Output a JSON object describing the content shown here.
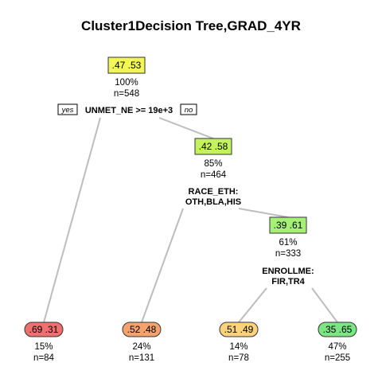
{
  "title": "Cluster1Decision Tree,GRAD_4YR",
  "colors": {
    "edge": "#bdbdbd",
    "box_border": "#333333",
    "yellow_bright": "#f2f757",
    "yellow_green": "#c4f25e",
    "green_light": "#a6f078",
    "red": "#f07070",
    "orange": "#f5a36e",
    "orange_light": "#fcd27c",
    "green": "#7de684"
  },
  "nodes": [
    {
      "id": "root",
      "probs": ".47  .53",
      "pct": "100%",
      "n": "n=548",
      "fill": "#f2f757",
      "leaf": false
    },
    {
      "id": "n2",
      "probs": ".42  .58",
      "pct": "85%",
      "n": "n=464",
      "fill": "#c4f25e",
      "leaf": false
    },
    {
      "id": "n3",
      "probs": ".39  .61",
      "pct": "61%",
      "n": "n=333",
      "fill": "#a6f078",
      "leaf": false
    },
    {
      "id": "leaf1",
      "probs": ".69  .31",
      "pct": "15%",
      "n": "n=84",
      "fill": "#f07070",
      "leaf": true
    },
    {
      "id": "leaf2",
      "probs": ".52  .48",
      "pct": "24%",
      "n": "n=131",
      "fill": "#f5a36e",
      "leaf": true
    },
    {
      "id": "leaf3",
      "probs": ".51  .49",
      "pct": "14%",
      "n": "n=78",
      "fill": "#fcd27c",
      "leaf": true
    },
    {
      "id": "leaf4",
      "probs": ".35  .65",
      "pct": "47%",
      "n": "n=255",
      "fill": "#7de684",
      "leaf": true
    }
  ],
  "splits": [
    {
      "id": "split-root",
      "lines": [
        "UNMET_NE >= 19e+3"
      ]
    },
    {
      "id": "split-n2",
      "lines": [
        "RACE_ETH:",
        "OTH,BLA,HIS"
      ]
    },
    {
      "id": "split-n3",
      "lines": [
        "ENROLLME:",
        "FIR,TR4"
      ]
    }
  ],
  "yes_label": "yes",
  "no_label": "no"
}
